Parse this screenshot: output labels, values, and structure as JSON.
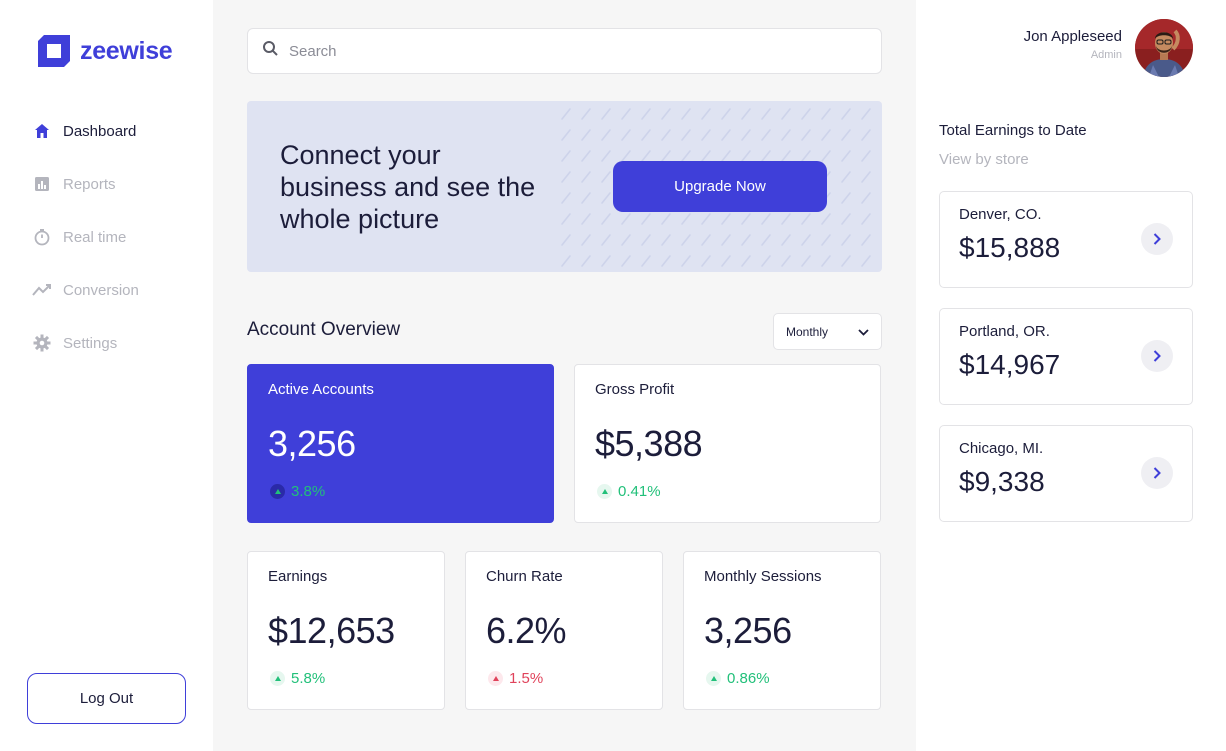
{
  "brand": {
    "name": "zeewise",
    "color": "#3f3fd9"
  },
  "sidebar": {
    "items": [
      {
        "label": "Dashboard",
        "icon": "home-icon",
        "active": true
      },
      {
        "label": "Reports",
        "icon": "bar-chart-icon",
        "active": false
      },
      {
        "label": "Real time",
        "icon": "stopwatch-icon",
        "active": false
      },
      {
        "label": "Conversion",
        "icon": "trend-line-icon",
        "active": false
      },
      {
        "label": "Settings",
        "icon": "gear-icon",
        "active": false
      }
    ],
    "logout_label": "Log Out"
  },
  "search": {
    "placeholder": "Search",
    "value": ""
  },
  "banner": {
    "text": "Connect your business and see the whole picture",
    "button_label": "Upgrade Now"
  },
  "overview": {
    "title": "Account Overview",
    "period": "Monthly",
    "cards": [
      {
        "title": "Active Accounts",
        "value": "3,256",
        "delta": "3.8%",
        "trend": "up"
      },
      {
        "title": "Gross Profit",
        "value": "$5,388",
        "delta": "0.41%",
        "trend": "up"
      },
      {
        "title": "Earnings",
        "value": "$12,653",
        "delta": "5.8%",
        "trend": "up"
      },
      {
        "title": "Churn Rate",
        "value": "6.2%",
        "delta": "1.5%",
        "trend": "up-negative"
      },
      {
        "title": "Monthly Sessions",
        "value": "3,256",
        "delta": "0.86%",
        "trend": "up"
      }
    ]
  },
  "user": {
    "name": "Jon Appleseed",
    "role": "Admin"
  },
  "earnings": {
    "title": "Total Earnings to Date",
    "subtitle": "View by store",
    "stores": [
      {
        "name": "Denver, CO.",
        "value": "$15,888"
      },
      {
        "name": "Portland, OR.",
        "value": "$14,967"
      },
      {
        "name": "Chicago, MI.",
        "value": "$9,338"
      }
    ]
  },
  "colors": {
    "positive": "#22c07a",
    "negative": "#e0435b",
    "banner_bg": "#dfe3f2"
  }
}
